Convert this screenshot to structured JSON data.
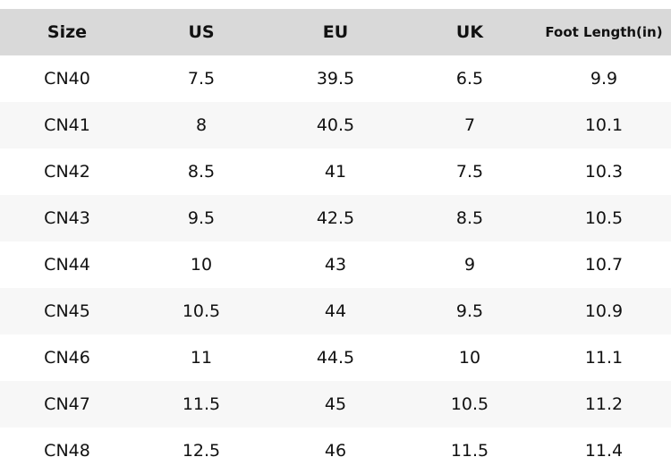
{
  "table": {
    "header": [
      "Size",
      "US",
      "EU",
      "UK",
      "Foot Length(in)"
    ],
    "rows": [
      [
        "CN40",
        "7.5",
        "39.5",
        "6.5",
        "9.9"
      ],
      [
        "CN41",
        "8",
        "40.5",
        "7",
        "10.1"
      ],
      [
        "CN42",
        "8.5",
        "41",
        "7.5",
        "10.3"
      ],
      [
        "CN43",
        "9.5",
        "42.5",
        "8.5",
        "10.5"
      ],
      [
        "CN44",
        "10",
        "43",
        "9",
        "10.7"
      ],
      [
        "CN45",
        "10.5",
        "44",
        "9.5",
        "10.9"
      ],
      [
        "CN46",
        "11",
        "44.5",
        "10",
        "11.1"
      ],
      [
        "CN47",
        "11.5",
        "45",
        "10.5",
        "11.2"
      ],
      [
        "CN48",
        "12.5",
        "46",
        "11.5",
        "11.4"
      ]
    ]
  }
}
